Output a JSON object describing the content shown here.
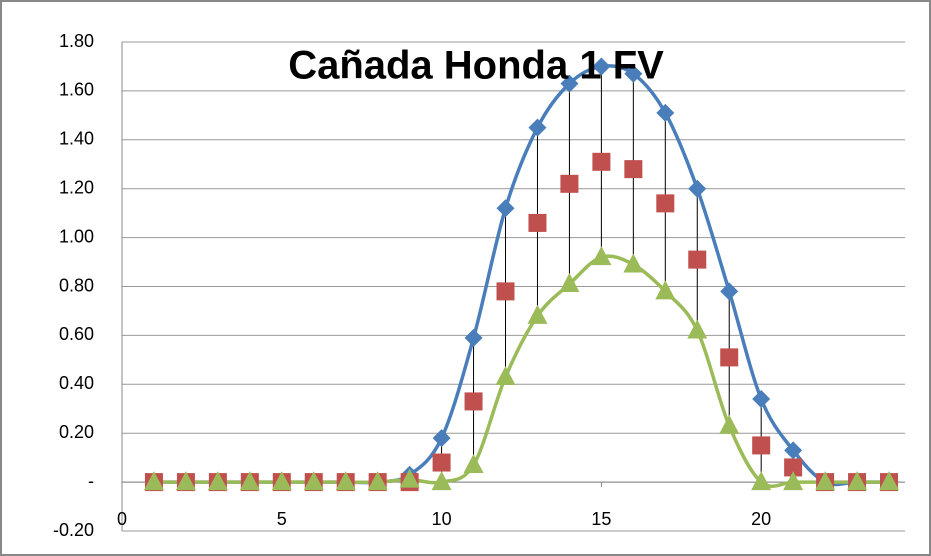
{
  "chart_data": {
    "type": "line",
    "title": "Cañada Honda 1 FV",
    "xlim": [
      0,
      24.5
    ],
    "xticks": [
      0,
      5,
      10,
      15,
      20
    ],
    "ylim": [
      -0.2,
      1.8
    ],
    "yticks": [
      {
        "value": -0.2,
        "label": "-0.20"
      },
      {
        "value": 0,
        "label": "-"
      },
      {
        "value": 0.2,
        "label": "0.20"
      },
      {
        "value": 0.4,
        "label": "0.40"
      },
      {
        "value": 0.6,
        "label": "0.60"
      },
      {
        "value": 0.8,
        "label": "0.80"
      },
      {
        "value": 1.0,
        "label": "1.00"
      },
      {
        "value": 1.2,
        "label": "1.20"
      },
      {
        "value": 1.4,
        "label": "1.40"
      },
      {
        "value": 1.6,
        "label": "1.60"
      },
      {
        "value": 1.8,
        "label": "1.80"
      }
    ],
    "grid": true,
    "high_low_lines": true,
    "x": [
      1,
      2,
      3,
      4,
      5,
      6,
      7,
      8,
      9,
      10,
      11,
      12,
      13,
      14,
      15,
      16,
      17,
      18,
      19,
      20,
      21,
      22,
      23,
      24
    ],
    "series": [
      {
        "color": "#4a7ebb",
        "marker": "diamond",
        "line": true,
        "values": [
          0,
          0,
          0,
          0,
          0,
          0,
          0,
          0,
          0.03,
          0.18,
          0.59,
          1.12,
          1.45,
          1.63,
          1.7,
          1.67,
          1.51,
          1.2,
          0.78,
          0.34,
          0.13,
          0,
          0,
          0
        ]
      },
      {
        "color": "#c0504d",
        "marker": "square",
        "line": false,
        "values": [
          0,
          0,
          0,
          0,
          0,
          0,
          0,
          0,
          0,
          0.08,
          0.33,
          0.78,
          1.06,
          1.22,
          1.31,
          1.28,
          1.14,
          0.91,
          0.51,
          0.15,
          0.06,
          0,
          0,
          0
        ]
      },
      {
        "color": "#9bbb59",
        "marker": "triangle",
        "line": true,
        "values": [
          0,
          0,
          0,
          0,
          0,
          0,
          0,
          0,
          0.01,
          0,
          0.07,
          0.43,
          0.68,
          0.81,
          0.92,
          0.89,
          0.78,
          0.62,
          0.23,
          0,
          0,
          0,
          0,
          0
        ]
      }
    ]
  }
}
